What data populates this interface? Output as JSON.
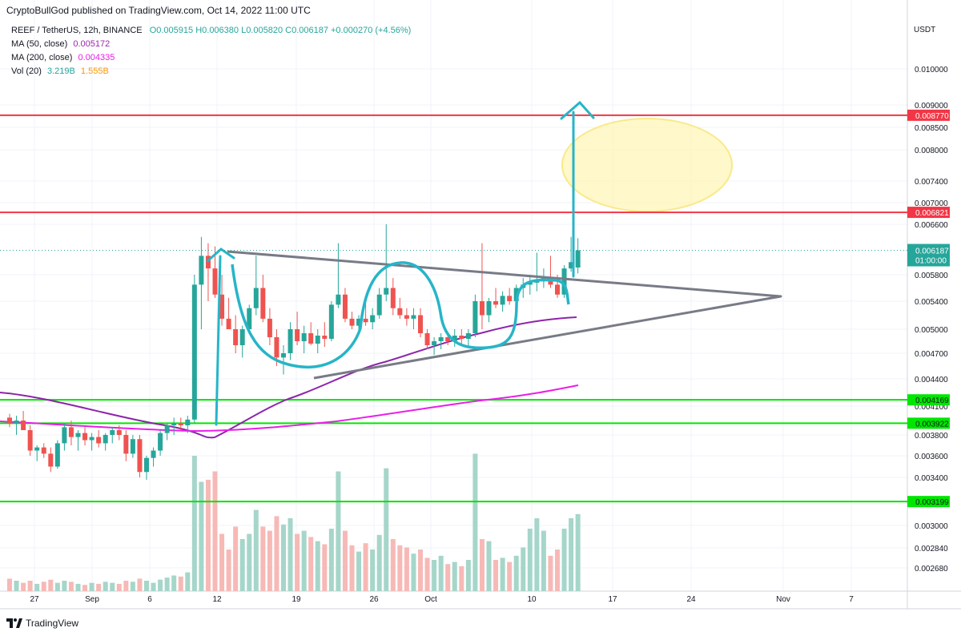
{
  "header": {
    "published": "CryptoBullGod published on TradingView.com, Oct 14, 2022 11:00 UTC"
  },
  "legend": {
    "symbol": "REEF / TetherUS, 12h, BINANCE",
    "ohlc": "O0.005915  H0.006380  L0.005820  C0.006187  +0.000270 (+4.56%)",
    "ma50_label": "MA (50, close)",
    "ma50_value": "0.005172",
    "ma200_label": "MA (200, close)",
    "ma200_value": "0.004335",
    "vol_label": "Vol (20)",
    "vol_value1": "3.219B",
    "vol_value2": "1.555B"
  },
  "brand": {
    "name": "TradingView"
  },
  "colors": {
    "up": "#26a69a",
    "down": "#ef5350",
    "resistance": "#f23645",
    "support": "#00e600",
    "ma50": "#8e24aa",
    "ma200": "#e91ee9",
    "triangle": "#787b86",
    "drawing": "#26b5c8",
    "ellipse": "#f9e98a"
  },
  "chart_data": {
    "type": "candlestick",
    "currency": "USDT",
    "y_axis_ticks": [
      "0.010000",
      "0.009000",
      "0.008500",
      "0.008000",
      "0.007400",
      "0.007000",
      "0.006600",
      "0.005800",
      "0.005400",
      "0.005000",
      "0.004700",
      "0.004400",
      "0.004100",
      "0.003800",
      "0.003600",
      "0.003400",
      "0.003000",
      "0.002840",
      "0.002680"
    ],
    "x_axis_ticks": [
      "27",
      "Sep",
      "6",
      "12",
      "19",
      "26",
      "Oct",
      "10",
      "17",
      "24",
      "Nov",
      "7"
    ],
    "levels": {
      "resistance": [
        0.00877,
        0.006821
      ],
      "support": [
        0.004169,
        0.003922,
        0.003199
      ]
    },
    "last_price": "0.006187",
    "countdown": "01:00:00",
    "level_labels": [
      "0.008770",
      "0.006821",
      "0.004169",
      "0.003922",
      "0.003199"
    ],
    "candles": [
      [
        0.00398,
        0.00402,
        0.00388,
        0.00392
      ],
      [
        0.00392,
        0.004,
        0.0038,
        0.00395
      ],
      [
        0.00395,
        0.00405,
        0.00385,
        0.00385
      ],
      [
        0.00385,
        0.0039,
        0.0036,
        0.00365
      ],
      [
        0.00365,
        0.0037,
        0.00355,
        0.00368
      ],
      [
        0.00368,
        0.00372,
        0.00358,
        0.00362
      ],
      [
        0.00362,
        0.00368,
        0.00345,
        0.0035
      ],
      [
        0.0035,
        0.00375,
        0.00348,
        0.00372
      ],
      [
        0.00372,
        0.00392,
        0.00365,
        0.00388
      ],
      [
        0.00388,
        0.00395,
        0.0037,
        0.00378
      ],
      [
        0.00378,
        0.00385,
        0.00365,
        0.00382
      ],
      [
        0.00382,
        0.00388,
        0.0037,
        0.00375
      ],
      [
        0.00375,
        0.00382,
        0.00365,
        0.00378
      ],
      [
        0.00378,
        0.00385,
        0.00368,
        0.00372
      ],
      [
        0.00372,
        0.00382,
        0.00365,
        0.0038
      ],
      [
        0.0038,
        0.00388,
        0.00372,
        0.00385
      ],
      [
        0.00385,
        0.0039,
        0.00375,
        0.0038
      ],
      [
        0.0038,
        0.00385,
        0.00355,
        0.00362
      ],
      [
        0.00362,
        0.0038,
        0.00358,
        0.00376
      ],
      [
        0.00376,
        0.0038,
        0.0034,
        0.00345
      ],
      [
        0.00345,
        0.0036,
        0.00338,
        0.00358
      ],
      [
        0.00358,
        0.00368,
        0.0035,
        0.00365
      ],
      [
        0.00365,
        0.00385,
        0.0036,
        0.00382
      ],
      [
        0.00382,
        0.00392,
        0.00375,
        0.0039
      ],
      [
        0.0039,
        0.00398,
        0.0038,
        0.00392
      ],
      [
        0.00392,
        0.00398,
        0.00385,
        0.0039
      ],
      [
        0.0039,
        0.004,
        0.00382,
        0.00396
      ],
      [
        0.00396,
        0.0058,
        0.00392,
        0.00565
      ],
      [
        0.00565,
        0.0064,
        0.005,
        0.0061
      ],
      [
        0.0061,
        0.0063,
        0.0054,
        0.0059
      ],
      [
        0.0059,
        0.00625,
        0.00545,
        0.0055
      ],
      [
        0.0055,
        0.0058,
        0.00505,
        0.00515
      ],
      [
        0.00515,
        0.00545,
        0.005,
        0.005
      ],
      [
        0.005,
        0.0052,
        0.0047,
        0.0048
      ],
      [
        0.0048,
        0.00505,
        0.00465,
        0.005
      ],
      [
        0.005,
        0.00535,
        0.00495,
        0.0053
      ],
      [
        0.0053,
        0.0061,
        0.0052,
        0.0056
      ],
      [
        0.0056,
        0.0058,
        0.0051,
        0.00515
      ],
      [
        0.00515,
        0.0053,
        0.0048,
        0.0049
      ],
      [
        0.0049,
        0.005,
        0.00455,
        0.00465
      ],
      [
        0.00465,
        0.0048,
        0.00445,
        0.0047
      ],
      [
        0.0047,
        0.0051,
        0.00462,
        0.005
      ],
      [
        0.005,
        0.00525,
        0.0048,
        0.00485
      ],
      [
        0.00485,
        0.00505,
        0.0047,
        0.00495
      ],
      [
        0.00495,
        0.0051,
        0.0048,
        0.00482
      ],
      [
        0.00482,
        0.005,
        0.0047,
        0.00492
      ],
      [
        0.00492,
        0.0051,
        0.00478,
        0.00488
      ],
      [
        0.00488,
        0.0054,
        0.00485,
        0.00535
      ],
      [
        0.00535,
        0.0063,
        0.0053,
        0.0055
      ],
      [
        0.0055,
        0.0056,
        0.0051,
        0.00515
      ],
      [
        0.00515,
        0.00525,
        0.005,
        0.00505
      ],
      [
        0.00505,
        0.0052,
        0.00498,
        0.00515
      ],
      [
        0.00515,
        0.0054,
        0.00505,
        0.0051
      ],
      [
        0.0051,
        0.0053,
        0.005,
        0.0052
      ],
      [
        0.0052,
        0.0056,
        0.00515,
        0.0055
      ],
      [
        0.0055,
        0.0066,
        0.0054,
        0.0056
      ],
      [
        0.0056,
        0.00575,
        0.0052,
        0.0053
      ],
      [
        0.0053,
        0.00545,
        0.00515,
        0.0052
      ],
      [
        0.0052,
        0.0053,
        0.00505,
        0.00515
      ],
      [
        0.00515,
        0.0053,
        0.005,
        0.0052
      ],
      [
        0.0052,
        0.0053,
        0.0049,
        0.00495
      ],
      [
        0.00495,
        0.005,
        0.00475,
        0.0048
      ],
      [
        0.0048,
        0.0049,
        0.00468,
        0.00485
      ],
      [
        0.00485,
        0.00495,
        0.00475,
        0.0049
      ],
      [
        0.0049,
        0.00495,
        0.0048,
        0.00485
      ],
      [
        0.00485,
        0.005,
        0.00478,
        0.00492
      ],
      [
        0.00492,
        0.005,
        0.0048,
        0.00488
      ],
      [
        0.00488,
        0.005,
        0.00478,
        0.00495
      ],
      [
        0.00495,
        0.0055,
        0.0049,
        0.0054
      ],
      [
        0.0054,
        0.0063,
        0.005,
        0.0052
      ],
      [
        0.0052,
        0.00545,
        0.0051,
        0.0054
      ],
      [
        0.0054,
        0.0056,
        0.0053,
        0.00535
      ],
      [
        0.00535,
        0.00555,
        0.00525,
        0.00548
      ],
      [
        0.00548,
        0.0056,
        0.00535,
        0.0054
      ],
      [
        0.0054,
        0.00565,
        0.00535,
        0.0056
      ],
      [
        0.0056,
        0.00575,
        0.00545,
        0.00565
      ],
      [
        0.00565,
        0.0058,
        0.0055,
        0.00568
      ],
      [
        0.00568,
        0.00615,
        0.00555,
        0.0057
      ],
      [
        0.0057,
        0.0059,
        0.0056,
        0.00575
      ],
      [
        0.00575,
        0.0061,
        0.0056,
        0.00565
      ],
      [
        0.00565,
        0.0058,
        0.00545,
        0.0055
      ],
      [
        0.0055,
        0.00595,
        0.00545,
        0.0059
      ],
      [
        0.0059,
        0.0064,
        0.00585,
        0.006
      ],
      [
        0.005915,
        0.00638,
        0.00582,
        0.006187
      ]
    ],
    "volumes": [
      0.12,
      0.1,
      0.08,
      0.1,
      0.07,
      0.09,
      0.11,
      0.08,
      0.1,
      0.09,
      0.07,
      0.06,
      0.08,
      0.07,
      0.09,
      0.08,
      0.07,
      0.1,
      0.09,
      0.12,
      0.1,
      0.08,
      0.11,
      0.13,
      0.15,
      0.14,
      0.18,
      1.3,
      1.05,
      1.07,
      1.15,
      0.55,
      0.4,
      0.62,
      0.5,
      0.55,
      0.78,
      0.62,
      0.58,
      0.72,
      0.64,
      0.7,
      0.55,
      0.58,
      0.52,
      0.48,
      0.45,
      0.6,
      1.15,
      0.58,
      0.44,
      0.38,
      0.46,
      0.4,
      0.54,
      1.18,
      0.5,
      0.44,
      0.42,
      0.36,
      0.4,
      0.32,
      0.3,
      0.34,
      0.26,
      0.28,
      0.24,
      0.3,
      1.32,
      0.5,
      0.48,
      0.3,
      0.32,
      0.28,
      0.34,
      0.42,
      0.6,
      0.7,
      0.58,
      0.34,
      0.4,
      0.6,
      0.7,
      0.74
    ]
  }
}
